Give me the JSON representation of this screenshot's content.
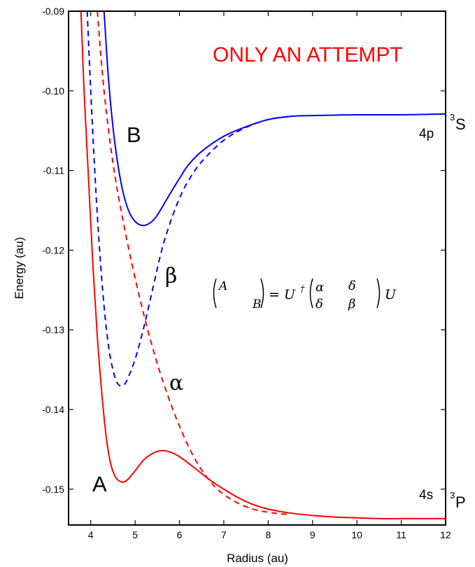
{
  "chart_data": {
    "type": "line",
    "title": "",
    "xlabel": "Radius (au)",
    "ylabel": "Energy (au)",
    "xlim": [
      3.5,
      12
    ],
    "ylim": [
      -0.1545,
      -0.09
    ],
    "x_ticks": [
      4,
      5,
      6,
      7,
      8,
      9,
      10,
      11,
      12
    ],
    "x_tick_labels": [
      "4",
      "5",
      "6",
      "7",
      "8",
      "9",
      "10",
      "11",
      "12"
    ],
    "y_ticks": [
      -0.09,
      -0.1,
      -0.11,
      -0.12,
      -0.13,
      -0.14,
      -0.15
    ],
    "y_tick_labels": [
      "-0.09",
      "-0.10",
      "-0.11",
      "-0.12",
      "-0.13",
      "-0.14",
      "-0.15"
    ],
    "grid": false,
    "series": [
      {
        "id": "A",
        "color": "#ff0000",
        "dash": "solid",
        "x": [
          3.78,
          3.85,
          3.95,
          4.05,
          4.15,
          4.25,
          4.35,
          4.45,
          4.55,
          4.65,
          4.75,
          4.85,
          5.0,
          5.2,
          5.4,
          5.55,
          5.7,
          5.9,
          6.1,
          6.4,
          6.7,
          7.0,
          7.3,
          7.6,
          8.0,
          8.5,
          9.0,
          9.5,
          10.0,
          10.5,
          11.0,
          11.5,
          12.0
        ],
        "y": [
          -0.09,
          -0.1,
          -0.111,
          -0.122,
          -0.131,
          -0.138,
          -0.1435,
          -0.1468,
          -0.1484,
          -0.149,
          -0.1491,
          -0.1487,
          -0.1477,
          -0.1463,
          -0.1455,
          -0.1452,
          -0.1452,
          -0.1456,
          -0.1463,
          -0.1476,
          -0.1489,
          -0.15,
          -0.151,
          -0.1518,
          -0.1525,
          -0.153,
          -0.1533,
          -0.1535,
          -0.1536,
          -0.1537,
          -0.1537,
          -0.1537,
          -0.1537
        ]
      },
      {
        "id": "B",
        "color": "#0000ff",
        "dash": "solid",
        "x": [
          4.3,
          4.4,
          4.5,
          4.6,
          4.7,
          4.8,
          4.9,
          5.0,
          5.1,
          5.2,
          5.3,
          5.4,
          5.5,
          5.6,
          5.8,
          6.0,
          6.2,
          6.5,
          7.0,
          7.5,
          8.0,
          8.5,
          9.0,
          10.0,
          11.0,
          12.0
        ],
        "y": [
          -0.09,
          -0.0985,
          -0.1045,
          -0.1088,
          -0.112,
          -0.1142,
          -0.1156,
          -0.1164,
          -0.1168,
          -0.1169,
          -0.1167,
          -0.1163,
          -0.1156,
          -0.1147,
          -0.1128,
          -0.111,
          -0.1093,
          -0.1076,
          -0.1057,
          -0.1045,
          -0.1036,
          -0.1032,
          -0.1031,
          -0.103,
          -0.103,
          -0.1029
        ]
      },
      {
        "id": "β",
        "color": "#0000ff",
        "dash": "dashed",
        "x": [
          3.92,
          4.0,
          4.1,
          4.2,
          4.3,
          4.4,
          4.5,
          4.6,
          4.7,
          4.8,
          5.0,
          5.2,
          5.4,
          5.6,
          5.8,
          6.0,
          6.2,
          6.5,
          7.0,
          7.5,
          8.0,
          8.5
        ],
        "y": [
          -0.09,
          -0.1,
          -0.111,
          -0.12,
          -0.127,
          -0.132,
          -0.135,
          -0.1367,
          -0.137,
          -0.1365,
          -0.1337,
          -0.1296,
          -0.1248,
          -0.12,
          -0.1164,
          -0.1135,
          -0.1113,
          -0.1089,
          -0.1062,
          -0.1046,
          -0.1036,
          -0.1032
        ]
      },
      {
        "id": "α",
        "color": "#ff0000",
        "dash": "dashed",
        "x": [
          4.15,
          4.25,
          4.35,
          4.5,
          4.7,
          5.0,
          5.3,
          5.6,
          6.0,
          6.4,
          6.8,
          7.2,
          7.6,
          8.0,
          8.5
        ],
        "y": [
          -0.09,
          -0.097,
          -0.1025,
          -0.109,
          -0.1155,
          -0.1235,
          -0.1303,
          -0.136,
          -0.1421,
          -0.1467,
          -0.1497,
          -0.1514,
          -0.1524,
          -0.1529,
          -0.1532
        ]
      }
    ],
    "annotations": {
      "banner": {
        "text": "ONLY AN ATTEMPT",
        "color": "#ff0000"
      },
      "curve_A": "A",
      "curve_B": "B",
      "curve_alpha": "α",
      "curve_beta": "β",
      "level_4p": "4p",
      "level_4s": "4s",
      "state_upper_sup": "3",
      "state_upper": "S",
      "state_lower_sup": "3",
      "state_lower": "P",
      "equation": {
        "matrix_A": "A",
        "matrix_B": "B",
        "equals_U": "= U",
        "dagger": "†",
        "alpha": "α",
        "delta_top": "δ",
        "delta_bottom": "δ",
        "beta": "β",
        "trailing_U": "U"
      }
    }
  }
}
